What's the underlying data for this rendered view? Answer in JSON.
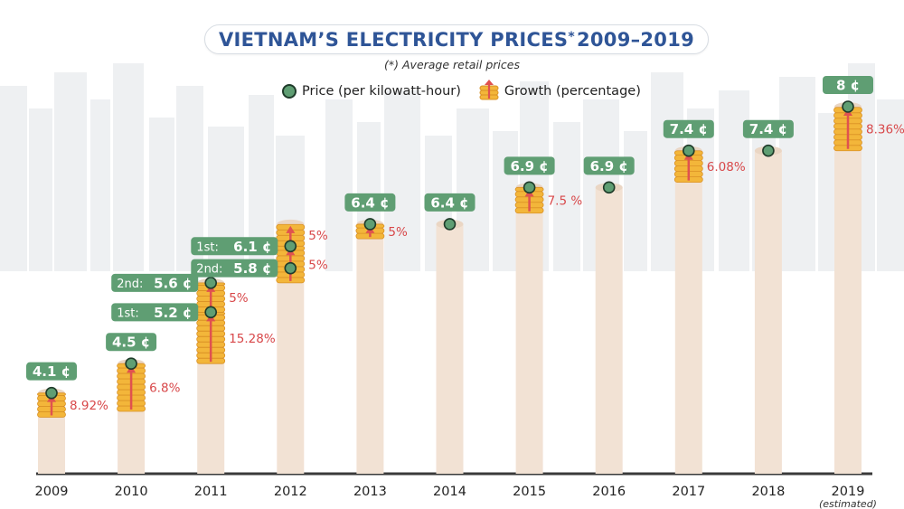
{
  "title": "VIETNAM’S ELECTRICITY PRICES",
  "title_mark": "*",
  "title_years": "2009–2019",
  "footnote": "(*) Average retail prices",
  "legend": {
    "price_label": "Price (per kilowatt-hour)",
    "growth_label": "Growth (percentage)"
  },
  "colors": {
    "bar": "#f2e2d4",
    "coin": "#f3b63a",
    "coin_edge": "#d99024",
    "arrow": "#e0524f",
    "label_bg": "#5f9e73",
    "dot_outline": "#1f3b2a",
    "growth_text": "#d8484a",
    "baseline": "#3a3a3a",
    "skyline": "#eef0f2"
  },
  "chart_data": {
    "type": "bar",
    "title": "VIETNAM’S ELECTRICITY PRICES 2009–2019",
    "ylabel": "",
    "xlabel": "",
    "unit": "¢",
    "ylim": [
      0,
      8.5
    ],
    "categories": [
      "2009",
      "2010",
      "2011",
      "2012",
      "2013",
      "2014",
      "2015",
      "2016",
      "2017",
      "2018",
      "2019"
    ],
    "category_notes": [
      "",
      "",
      "",
      "",
      "",
      "",
      "",
      "",
      "",
      "",
      "(estimated)"
    ],
    "prices": [
      [
        {
          "value": 4.1,
          "label": "4.1 ¢"
        }
      ],
      [
        {
          "value": 4.5,
          "label": "4.5 ¢"
        }
      ],
      [
        {
          "value": 5.2,
          "label": "5.2 ¢",
          "prefix": "1st:"
        },
        {
          "value": 5.6,
          "label": "5.6 ¢",
          "prefix": "2nd:"
        }
      ],
      [
        {
          "value": 6.1,
          "label": "6.1 ¢",
          "prefix": "1st:"
        },
        {
          "value": 5.8,
          "label": "5.8 ¢",
          "prefix": "2nd:"
        }
      ],
      [
        {
          "value": 6.4,
          "label": "6.4 ¢"
        }
      ],
      [
        {
          "value": 6.4,
          "label": "6.4 ¢"
        }
      ],
      [
        {
          "value": 6.9,
          "label": "6.9 ¢"
        }
      ],
      [
        {
          "value": 6.9,
          "label": "6.9 ¢"
        }
      ],
      [
        {
          "value": 7.4,
          "label": "7.4 ¢"
        }
      ],
      [
        {
          "value": 7.4,
          "label": "7.4 ¢"
        }
      ],
      [
        {
          "value": 8,
          "label": "8 ¢"
        }
      ]
    ],
    "growth": [
      [
        {
          "from": 3.77,
          "to": 4.1,
          "label": "8.92%"
        }
      ],
      [
        {
          "from": 3.85,
          "to": 4.5,
          "label": "6.8%"
        }
      ],
      [
        {
          "from": 4.5,
          "to": 5.2,
          "label": "15.28%"
        },
        {
          "from": 5.2,
          "to": 5.6,
          "label": "5%"
        }
      ],
      [
        {
          "from": 5.6,
          "to": 6.1,
          "label": "5%"
        },
        {
          "from": 6.1,
          "to": 6.4,
          "label": "5%"
        }
      ],
      [
        {
          "from": 6.2,
          "to": 6.4,
          "label": "5%"
        }
      ],
      [],
      [
        {
          "from": 6.55,
          "to": 6.9,
          "label": "7.5 %"
        }
      ],
      [],
      [
        {
          "from": 6.97,
          "to": 7.4,
          "label": "6.08%"
        }
      ],
      [],
      [
        {
          "from": 7.4,
          "to": 8.0,
          "label": "8.36%"
        }
      ]
    ]
  }
}
